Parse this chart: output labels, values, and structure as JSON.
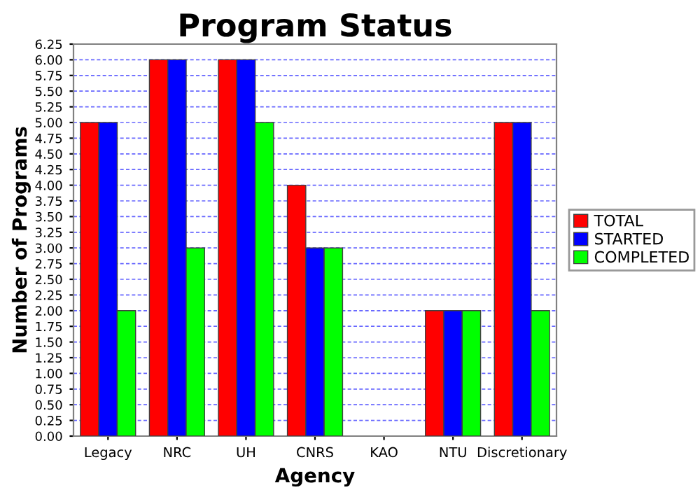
{
  "chart_data": {
    "type": "bar",
    "title": "Program Status",
    "xlabel": "Agency",
    "ylabel": "Number of Programs",
    "categories": [
      "Legacy",
      "NRC",
      "UH",
      "CNRS",
      "KAO",
      "NTU",
      "Discretionary"
    ],
    "series": [
      {
        "name": "TOTAL",
        "color": "#ff0000",
        "values": [
          5,
          6,
          6,
          4,
          null,
          2,
          5
        ]
      },
      {
        "name": "STARTED",
        "color": "#0000ff",
        "values": [
          5,
          6,
          6,
          3,
          null,
          2,
          5
        ]
      },
      {
        "name": "COMPLETED",
        "color": "#00ff00",
        "values": [
          2,
          3,
          5,
          3,
          null,
          2,
          2
        ]
      }
    ],
    "ylim": [
      0,
      6.25
    ],
    "yticks": [
      {
        "value": 0,
        "label": "0.00"
      },
      {
        "value": 0.25,
        "label": "0.25"
      },
      {
        "value": 0.5,
        "label": "0.50"
      },
      {
        "value": 0.75,
        "label": "0.75"
      },
      {
        "value": 1,
        "label": "1.00"
      },
      {
        "value": 1.25,
        "label": "1.25"
      },
      {
        "value": 1.5,
        "label": "1.50"
      },
      {
        "value": 1.75,
        "label": "1.75"
      },
      {
        "value": 2,
        "label": "2.00"
      },
      {
        "value": 2.25,
        "label": "2.25"
      },
      {
        "value": 2.5,
        "label": "2.50"
      },
      {
        "value": 2.75,
        "label": "2.75"
      },
      {
        "value": 3,
        "label": "3.00"
      },
      {
        "value": 3.25,
        "label": "3.25"
      },
      {
        "value": 3.5,
        "label": "3.50"
      },
      {
        "value": 3.75,
        "label": "3.75"
      },
      {
        "value": 4,
        "label": "4.00"
      },
      {
        "value": 4.25,
        "label": "4.25"
      },
      {
        "value": 4.5,
        "label": "4.50"
      },
      {
        "value": 4.75,
        "label": "4.75"
      },
      {
        "value": 5,
        "label": "5.00"
      },
      {
        "value": 5.25,
        "label": "5.25"
      },
      {
        "value": 5.5,
        "label": "5.50"
      },
      {
        "value": 5.75,
        "label": "5.75"
      },
      {
        "value": 6,
        "label": "6.00"
      },
      {
        "value": 6.25,
        "label": "6.25"
      }
    ],
    "grid": "y",
    "legend": "right"
  }
}
